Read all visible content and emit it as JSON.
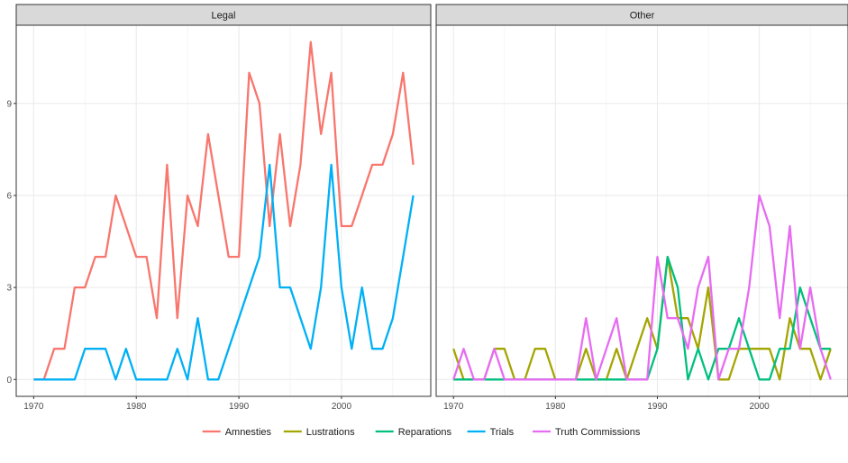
{
  "colors": {
    "Amnesties": "#F8766D",
    "Lustrations": "#A3A500",
    "Reparations": "#00BF7D",
    "Trials": "#00B0F6",
    "Truth Commissions": "#E76BF3"
  },
  "chart_data": {
    "type": "line",
    "xlim": [
      1968.3,
      2008.7
    ],
    "ylim": [
      -0.55,
      11.55
    ],
    "x_ticks": [
      1970,
      1980,
      1990,
      2000
    ],
    "y_ticks": [
      0,
      3,
      6,
      9
    ],
    "x_tick_labels": [
      "1970",
      "1980",
      "1990",
      "2000"
    ],
    "y_tick_labels": [
      "0",
      "3",
      "6",
      "9"
    ],
    "grid": true,
    "legend_position": "bottom",
    "legend": [
      "Amnesties",
      "Lustrations",
      "Reparations",
      "Trials",
      "Truth Commissions"
    ],
    "facets": [
      {
        "title": "Legal",
        "series": [
          {
            "name": "Amnesties",
            "x": [
              1970,
              1971,
              1972,
              1973,
              1974,
              1975,
              1976,
              1977,
              1978,
              1979,
              1980,
              1981,
              1982,
              1983,
              1984,
              1985,
              1986,
              1987,
              1988,
              1989,
              1990,
              1991,
              1992,
              1993,
              1994,
              1995,
              1996,
              1997,
              1998,
              1999,
              2000,
              2001,
              2002,
              2003,
              2004,
              2005,
              2006,
              2007
            ],
            "y": [
              0,
              0,
              1,
              1,
              3,
              3,
              4,
              4,
              6,
              5,
              4,
              4,
              2,
              7,
              2,
              6,
              5,
              8,
              6,
              4,
              4,
              10,
              9,
              5,
              8,
              5,
              7,
              11,
              8,
              10,
              5,
              5,
              6,
              7,
              7,
              8,
              10,
              7
            ]
          },
          {
            "name": "Trials",
            "x": [
              1970,
              1971,
              1972,
              1973,
              1974,
              1975,
              1976,
              1977,
              1978,
              1979,
              1980,
              1981,
              1982,
              1983,
              1984,
              1985,
              1986,
              1987,
              1988,
              1989,
              1990,
              1991,
              1992,
              1993,
              1994,
              1995,
              1996,
              1997,
              1998,
              1999,
              2000,
              2001,
              2002,
              2003,
              2004,
              2005,
              2006,
              2007
            ],
            "y": [
              0,
              0,
              0,
              0,
              0,
              1,
              1,
              1,
              0,
              1,
              0,
              0,
              0,
              0,
              1,
              0,
              2,
              0,
              0,
              1,
              2,
              3,
              4,
              7,
              3,
              3,
              2,
              1,
              3,
              7,
              3,
              1,
              3,
              1,
              1,
              2,
              4,
              6
            ]
          }
        ]
      },
      {
        "title": "Other",
        "series": [
          {
            "name": "Lustrations",
            "x": [
              1970,
              1971,
              1972,
              1973,
              1974,
              1975,
              1976,
              1977,
              1978,
              1979,
              1980,
              1981,
              1982,
              1983,
              1984,
              1985,
              1986,
              1987,
              1988,
              1989,
              1990,
              1991,
              1992,
              1993,
              1994,
              1995,
              1996,
              1997,
              1998,
              1999,
              2000,
              2001,
              2002,
              2003,
              2004,
              2005,
              2006,
              2007
            ],
            "y": [
              1,
              0,
              0,
              0,
              1,
              1,
              0,
              0,
              1,
              1,
              0,
              0,
              0,
              1,
              0,
              0,
              1,
              0,
              1,
              2,
              1,
              4,
              2,
              2,
              1,
              3,
              0,
              0,
              1,
              1,
              1,
              1,
              0,
              2,
              1,
              1,
              0,
              1
            ]
          },
          {
            "name": "Reparations",
            "x": [
              1970,
              1971,
              1972,
              1973,
              1974,
              1975,
              1976,
              1977,
              1978,
              1979,
              1980,
              1981,
              1982,
              1983,
              1984,
              1985,
              1986,
              1987,
              1988,
              1989,
              1990,
              1991,
              1992,
              1993,
              1994,
              1995,
              1996,
              1997,
              1998,
              1999,
              2000,
              2001,
              2002,
              2003,
              2004,
              2005,
              2006,
              2007
            ],
            "y": [
              0,
              0,
              0,
              0,
              0,
              0,
              0,
              0,
              0,
              0,
              0,
              0,
              0,
              0,
              0,
              0,
              0,
              0,
              0,
              0,
              1,
              4,
              3,
              0,
              1,
              0,
              1,
              1,
              2,
              1,
              0,
              0,
              1,
              1,
              3,
              2,
              1,
              1
            ]
          },
          {
            "name": "Truth Commissions",
            "x": [
              1970,
              1971,
              1972,
              1973,
              1974,
              1975,
              1976,
              1977,
              1978,
              1979,
              1980,
              1981,
              1982,
              1983,
              1984,
              1985,
              1986,
              1987,
              1988,
              1989,
              1990,
              1991,
              1992,
              1993,
              1994,
              1995,
              1996,
              1997,
              1998,
              1999,
              2000,
              2001,
              2002,
              2003,
              2004,
              2005,
              2006,
              2007
            ],
            "y": [
              0,
              1,
              0,
              0,
              1,
              0,
              0,
              0,
              0,
              0,
              0,
              0,
              0,
              2,
              0,
              1,
              2,
              0,
              0,
              0,
              4,
              2,
              2,
              1,
              3,
              4,
              0,
              1,
              1,
              3,
              6,
              5,
              2,
              5,
              1,
              3,
              1,
              0
            ]
          }
        ]
      }
    ]
  }
}
